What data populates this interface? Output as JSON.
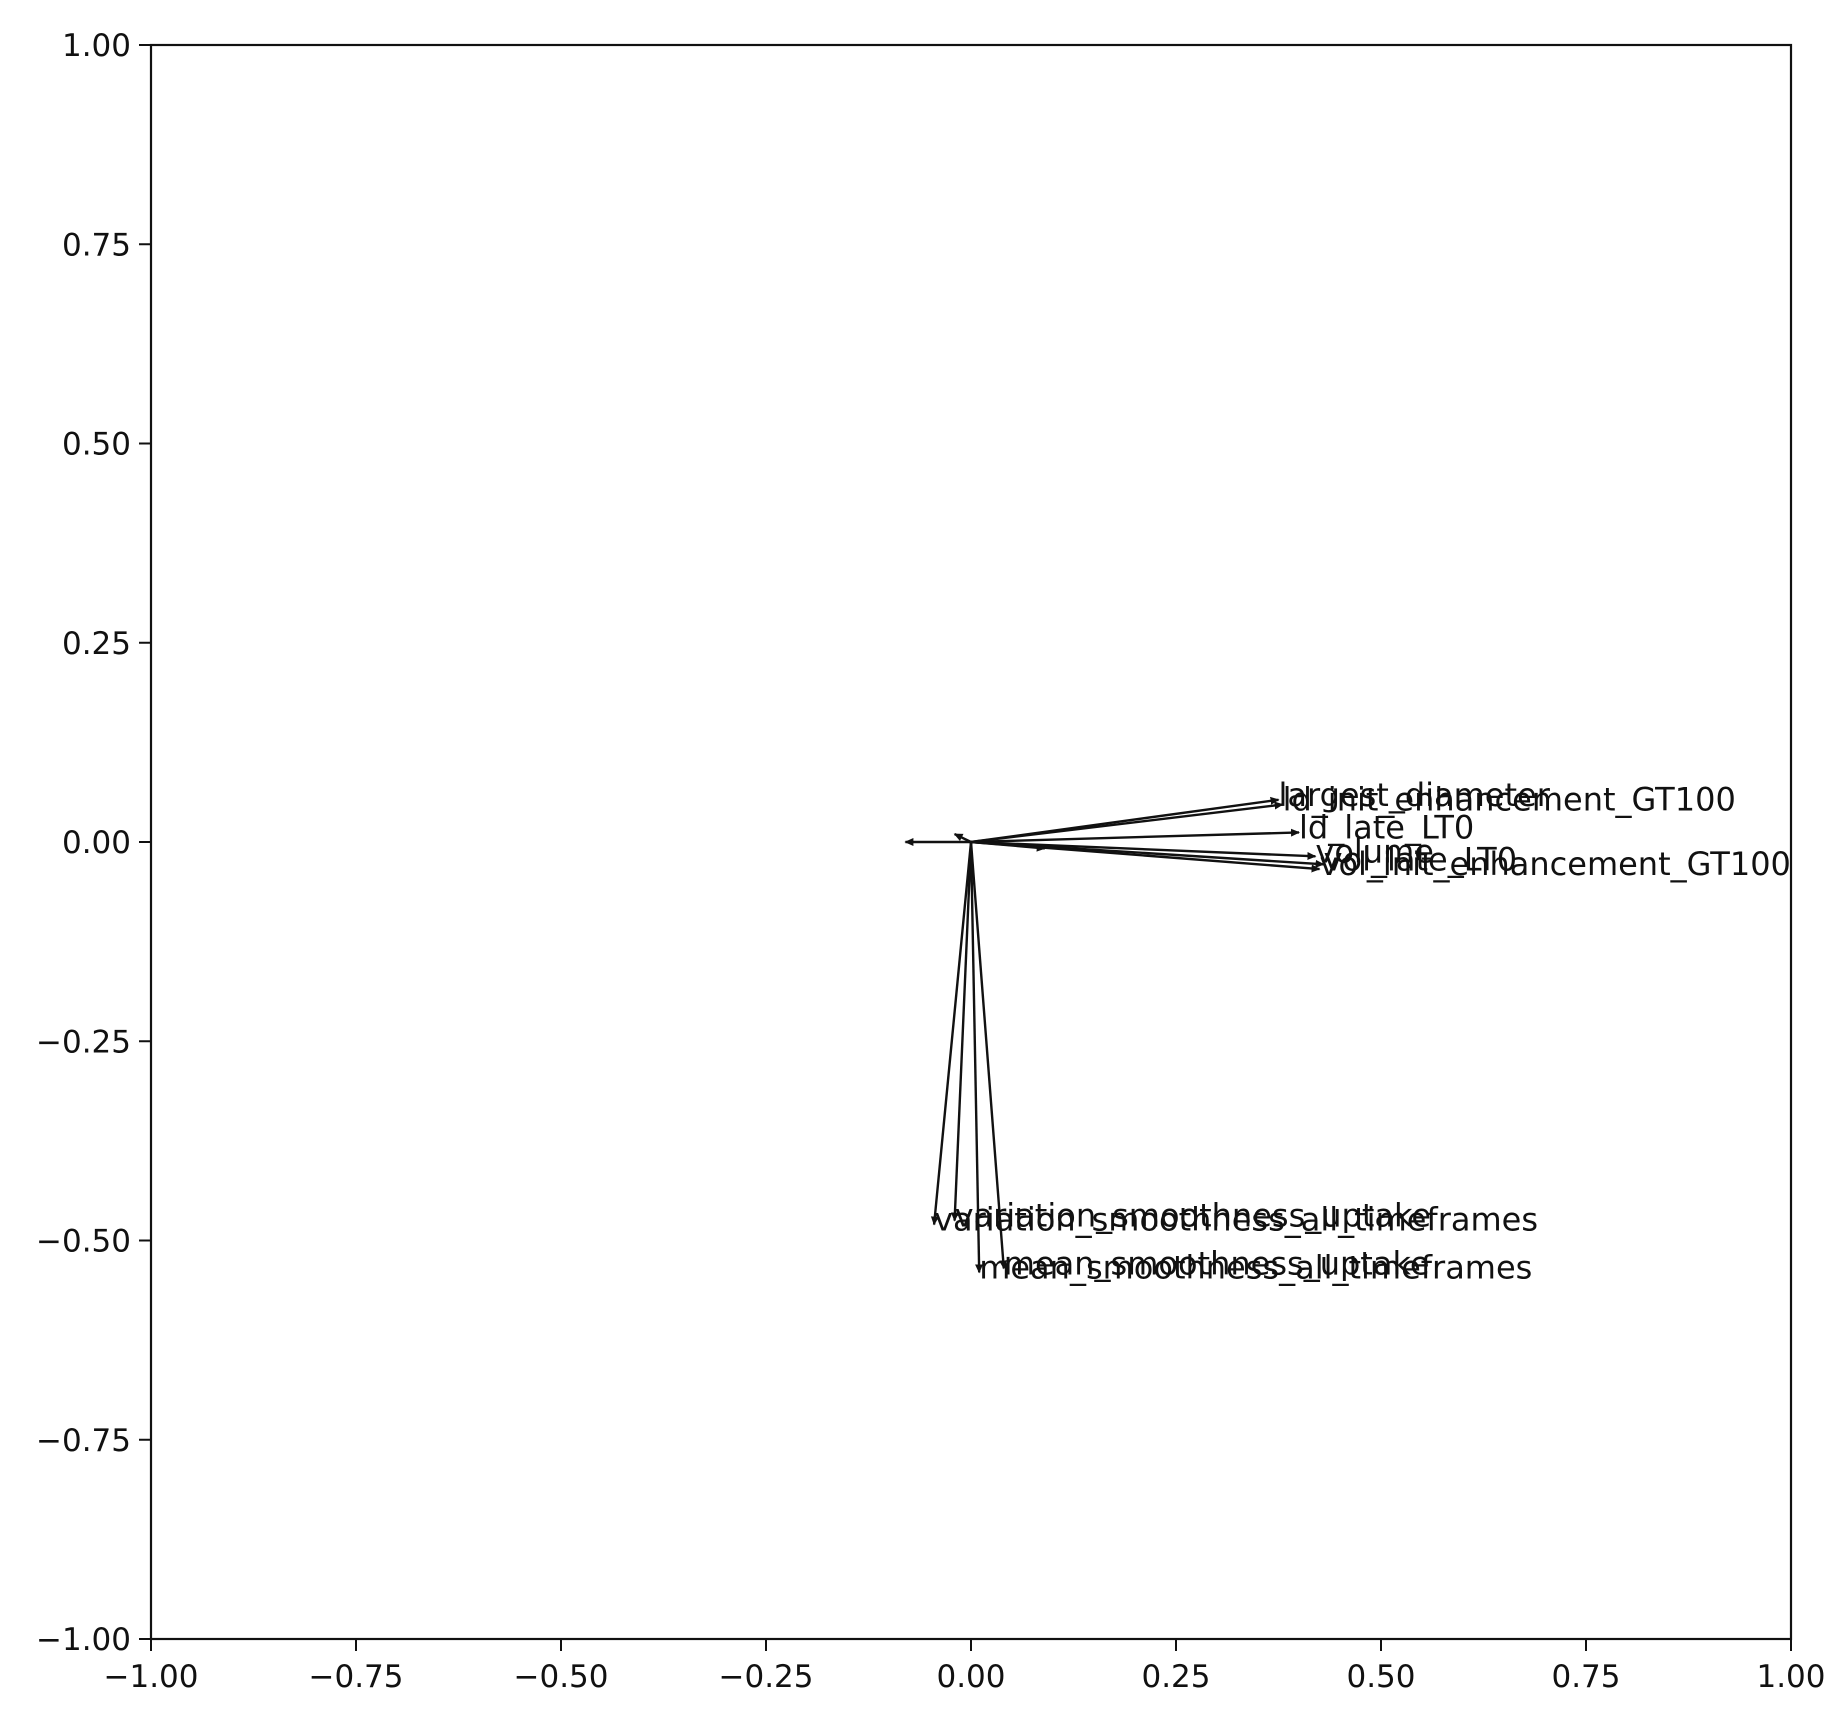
{
  "chart_data": {
    "type": "biplot",
    "title": "",
    "xlabel": "",
    "ylabel": "",
    "xlim": [
      -1.0,
      1.0
    ],
    "ylim": [
      -1.0,
      1.0
    ],
    "grid": false,
    "legend": "none",
    "x_ticks": [
      "−1.00",
      "−0.75",
      "−0.50",
      "−0.25",
      "0.00",
      "0.25",
      "0.50",
      "0.75",
      "1.00"
    ],
    "y_ticks": [
      "1.00",
      "0.75",
      "0.50",
      "0.25",
      "0.00",
      "−0.25",
      "−0.50",
      "−0.75",
      "−1.00"
    ],
    "arrow_color": "#111111",
    "vectors": [
      {
        "label": "largest_diameter",
        "x": 0.375,
        "y": 0.053
      },
      {
        "label": "ld_init_enhancement_GT100",
        "x": 0.38,
        "y": 0.047
      },
      {
        "label": "ld_late_LT0",
        "x": 0.4,
        "y": 0.012
      },
      {
        "label": "volume",
        "x": 0.42,
        "y": -0.018
      },
      {
        "label": "vol_late_LT0",
        "x": 0.43,
        "y": -0.028
      },
      {
        "label": "vol_init_enhancement_GT100",
        "x": 0.425,
        "y": -0.034
      },
      {
        "label": "variation_smoothness_uptake",
        "x": -0.02,
        "y": -0.475
      },
      {
        "label": "variation_smoothness_all_timeframes",
        "x": -0.045,
        "y": -0.48
      },
      {
        "label": "mean_smoothness_uptake",
        "x": 0.04,
        "y": -0.535
      },
      {
        "label": "mean_smoothness_all_timeframes",
        "x": 0.01,
        "y": -0.54
      },
      {
        "label": "",
        "x": -0.08,
        "y": 0.0
      },
      {
        "label": "",
        "x": 0.09,
        "y": -0.008
      },
      {
        "label": "",
        "x": -0.02,
        "y": 0.01
      }
    ]
  }
}
